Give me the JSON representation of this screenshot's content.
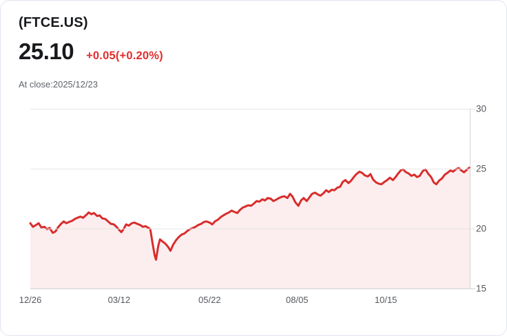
{
  "header": {
    "symbol": "(FTCE.US)",
    "price": "25.10",
    "change": "+0.05(+0.20%)",
    "close_info": "At close:2025/12/23"
  },
  "colors": {
    "accent_red": "#e12d2d",
    "line_red": "#d92c2c",
    "area_fill": "rgba(217,44,44,0.08)",
    "gridline": "#e6e6e6",
    "axis_line": "#d2d2d2",
    "axis_label": "#55585e",
    "text_dark": "#17191c",
    "text_gray": "#5e6269",
    "card_border": "#e0e4ee"
  },
  "chart_data": {
    "type": "line",
    "title": "",
    "xlabel": "",
    "ylabel": "",
    "legend": "none",
    "grid": "horizontal",
    "x_tick_labels": [
      "12/26",
      "03/12",
      "05/22",
      "08/05",
      "10/15"
    ],
    "y_tick_labels": [
      "30",
      "25",
      "20",
      "15"
    ],
    "y_gridline_values": [
      30,
      25,
      20,
      15
    ],
    "ylim": [
      15,
      30
    ],
    "x_range_fraction": [
      0,
      1
    ],
    "series": [
      {
        "name": "FTCE.US close price",
        "points": [
          [
            0.0,
            20.45
          ],
          [
            0.006,
            20.15
          ],
          [
            0.013,
            20.3
          ],
          [
            0.019,
            20.45
          ],
          [
            0.025,
            20.1
          ],
          [
            0.032,
            20.15
          ],
          [
            0.038,
            19.95
          ],
          [
            0.044,
            20.05
          ],
          [
            0.051,
            19.65
          ],
          [
            0.057,
            19.75
          ],
          [
            0.063,
            20.1
          ],
          [
            0.07,
            20.4
          ],
          [
            0.076,
            20.6
          ],
          [
            0.082,
            20.45
          ],
          [
            0.088,
            20.55
          ],
          [
            0.095,
            20.65
          ],
          [
            0.101,
            20.8
          ],
          [
            0.107,
            20.9
          ],
          [
            0.114,
            21.0
          ],
          [
            0.12,
            20.9
          ],
          [
            0.126,
            21.1
          ],
          [
            0.133,
            21.35
          ],
          [
            0.139,
            21.2
          ],
          [
            0.145,
            21.3
          ],
          [
            0.152,
            21.05
          ],
          [
            0.158,
            21.1
          ],
          [
            0.164,
            20.85
          ],
          [
            0.171,
            20.8
          ],
          [
            0.177,
            20.6
          ],
          [
            0.183,
            20.4
          ],
          [
            0.19,
            20.35
          ],
          [
            0.196,
            20.15
          ],
          [
            0.202,
            19.9
          ],
          [
            0.207,
            19.7
          ],
          [
            0.212,
            19.95
          ],
          [
            0.218,
            20.35
          ],
          [
            0.224,
            20.25
          ],
          [
            0.231,
            20.45
          ],
          [
            0.237,
            20.5
          ],
          [
            0.243,
            20.4
          ],
          [
            0.25,
            20.3
          ],
          [
            0.256,
            20.15
          ],
          [
            0.262,
            20.2
          ],
          [
            0.269,
            20.05
          ],
          [
            0.273,
            19.95
          ],
          [
            0.278,
            18.8
          ],
          [
            0.283,
            17.75
          ],
          [
            0.286,
            17.4
          ],
          [
            0.291,
            18.55
          ],
          [
            0.295,
            19.1
          ],
          [
            0.3,
            18.95
          ],
          [
            0.307,
            18.75
          ],
          [
            0.313,
            18.5
          ],
          [
            0.319,
            18.15
          ],
          [
            0.325,
            18.65
          ],
          [
            0.332,
            19.05
          ],
          [
            0.338,
            19.3
          ],
          [
            0.344,
            19.5
          ],
          [
            0.351,
            19.6
          ],
          [
            0.357,
            19.8
          ],
          [
            0.363,
            19.95
          ],
          [
            0.37,
            20.05
          ],
          [
            0.376,
            20.15
          ],
          [
            0.382,
            20.3
          ],
          [
            0.389,
            20.4
          ],
          [
            0.395,
            20.55
          ],
          [
            0.401,
            20.6
          ],
          [
            0.408,
            20.5
          ],
          [
            0.414,
            20.35
          ],
          [
            0.42,
            20.6
          ],
          [
            0.427,
            20.75
          ],
          [
            0.433,
            20.95
          ],
          [
            0.439,
            21.1
          ],
          [
            0.446,
            21.25
          ],
          [
            0.452,
            21.35
          ],
          [
            0.458,
            21.5
          ],
          [
            0.464,
            21.4
          ],
          [
            0.471,
            21.3
          ],
          [
            0.477,
            21.55
          ],
          [
            0.483,
            21.75
          ],
          [
            0.49,
            21.85
          ],
          [
            0.496,
            21.95
          ],
          [
            0.502,
            21.9
          ],
          [
            0.509,
            22.1
          ],
          [
            0.515,
            22.3
          ],
          [
            0.521,
            22.25
          ],
          [
            0.528,
            22.45
          ],
          [
            0.534,
            22.35
          ],
          [
            0.54,
            22.55
          ],
          [
            0.547,
            22.5
          ],
          [
            0.553,
            22.3
          ],
          [
            0.559,
            22.4
          ],
          [
            0.566,
            22.55
          ],
          [
            0.572,
            22.65
          ],
          [
            0.578,
            22.7
          ],
          [
            0.585,
            22.55
          ],
          [
            0.591,
            22.9
          ],
          [
            0.597,
            22.65
          ],
          [
            0.603,
            22.2
          ],
          [
            0.61,
            21.9
          ],
          [
            0.616,
            22.35
          ],
          [
            0.622,
            22.55
          ],
          [
            0.629,
            22.3
          ],
          [
            0.635,
            22.6
          ],
          [
            0.641,
            22.9
          ],
          [
            0.648,
            23.0
          ],
          [
            0.654,
            22.85
          ],
          [
            0.66,
            22.75
          ],
          [
            0.667,
            22.95
          ],
          [
            0.673,
            23.2
          ],
          [
            0.679,
            23.05
          ],
          [
            0.686,
            23.25
          ],
          [
            0.692,
            23.2
          ],
          [
            0.698,
            23.4
          ],
          [
            0.705,
            23.5
          ],
          [
            0.711,
            23.9
          ],
          [
            0.717,
            24.05
          ],
          [
            0.724,
            23.8
          ],
          [
            0.73,
            24.0
          ],
          [
            0.736,
            24.3
          ],
          [
            0.742,
            24.55
          ],
          [
            0.749,
            24.75
          ],
          [
            0.755,
            24.65
          ],
          [
            0.761,
            24.45
          ],
          [
            0.768,
            24.35
          ],
          [
            0.774,
            24.55
          ],
          [
            0.78,
            24.1
          ],
          [
            0.787,
            23.85
          ],
          [
            0.793,
            23.75
          ],
          [
            0.799,
            23.7
          ],
          [
            0.806,
            23.9
          ],
          [
            0.812,
            24.05
          ],
          [
            0.818,
            24.25
          ],
          [
            0.825,
            24.05
          ],
          [
            0.831,
            24.3
          ],
          [
            0.837,
            24.6
          ],
          [
            0.844,
            24.9
          ],
          [
            0.848,
            24.95
          ],
          [
            0.855,
            24.7
          ],
          [
            0.861,
            24.6
          ],
          [
            0.867,
            24.4
          ],
          [
            0.874,
            24.5
          ],
          [
            0.88,
            24.3
          ],
          [
            0.886,
            24.4
          ],
          [
            0.893,
            24.8
          ],
          [
            0.899,
            24.95
          ],
          [
            0.905,
            24.6
          ],
          [
            0.912,
            24.3
          ],
          [
            0.918,
            23.85
          ],
          [
            0.924,
            23.7
          ],
          [
            0.93,
            24.0
          ],
          [
            0.937,
            24.2
          ],
          [
            0.943,
            24.5
          ],
          [
            0.949,
            24.65
          ],
          [
            0.956,
            24.85
          ],
          [
            0.962,
            24.75
          ],
          [
            0.968,
            24.95
          ],
          [
            0.975,
            25.05
          ],
          [
            0.981,
            24.85
          ],
          [
            0.987,
            24.7
          ],
          [
            0.994,
            24.95
          ],
          [
            1.0,
            25.1
          ]
        ]
      }
    ],
    "last_value": 25.1,
    "min_value": 17.4,
    "first_value": 20.45
  }
}
